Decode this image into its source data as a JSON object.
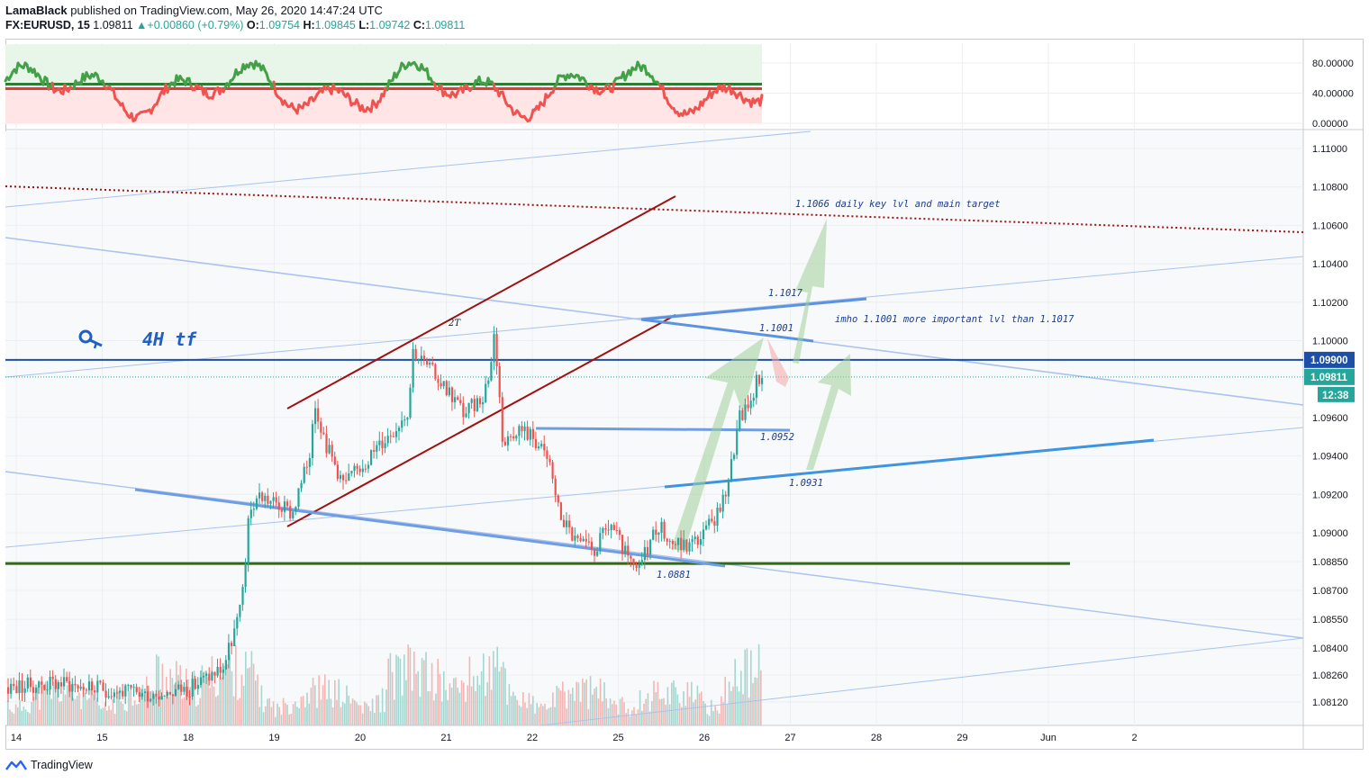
{
  "header": {
    "author": "LamaBlack",
    "published": "published on TradingView.com, May 26, 2020 14:47:24 UTC",
    "symbol": "FX:EURUSD, 15",
    "last": "1.09811",
    "change": "+0.00860 (+0.79%)",
    "o_label": "O:",
    "o": "1.09754",
    "h_label": "H:",
    "h": "1.09845",
    "l_label": "L:",
    "l": "1.09742",
    "c_label": "C:",
    "c": "1.09811"
  },
  "footer": {
    "brand": "TradingView"
  },
  "chart_data": [
    {
      "type": "line",
      "panel": "oscillator",
      "yticks": [
        "80.00000",
        "40.00000",
        "0.00000"
      ],
      "ylim": [
        0,
        100
      ],
      "upper_level": 52,
      "lower_level": 46,
      "colors": {
        "bull": "#43a047",
        "bear": "#ef5350",
        "bull_zone": "#e8f5e9",
        "bear_zone": "#ffe5e5"
      }
    },
    {
      "type": "candlestick",
      "panel": "price",
      "yticks": [
        "1.11000",
        "1.10800",
        "1.10600",
        "1.10400",
        "1.10200",
        "1.10000",
        "1.09600",
        "1.09400",
        "1.09200",
        "1.09000",
        "1.08850",
        "1.08700",
        "1.08550",
        "1.08400",
        "1.08260",
        "1.08120"
      ],
      "ylim": [
        1.0805,
        1.1115
      ],
      "xticks": [
        "14",
        "15",
        "18",
        "19",
        "20",
        "21",
        "22",
        "25",
        "26",
        "27",
        "28",
        "29",
        "Jun",
        "2"
      ],
      "price_labels": {
        "level": "1.09900",
        "last": "1.09811",
        "countdown": "12:38"
      },
      "colors": {
        "up": "#26a69a",
        "down": "#ef5350",
        "level": "#1e4fa8",
        "channel": "#a01010",
        "trend": "#6f9de3",
        "support": "#2e6b12"
      },
      "annotations": {
        "key_label": "4H tf",
        "top_pattern": "2T",
        "target": "1.1066  daily key lvl and main target",
        "l1017": "1.1017",
        "imho": "imho 1.1001 more important lvl than 1.1017",
        "l1001": "1.1001",
        "l0952": "1.0952",
        "l0931": "1.0931",
        "l0881": "1.0881"
      },
      "key_levels": [
        1.0881,
        1.0931,
        1.0952,
        1.099,
        1.1001,
        1.1017,
        1.1066
      ],
      "series_note_points": [
        [
          0,
          1.082
        ],
        [
          0.5,
          1.0822
        ],
        [
          1,
          1.0818
        ],
        [
          1.5,
          1.0816
        ],
        [
          2,
          1.0819
        ],
        [
          2.4,
          1.083
        ],
        [
          2.6,
          1.086
        ],
        [
          2.7,
          1.091
        ],
        [
          2.8,
          1.092
        ],
        [
          3,
          1.0915
        ],
        [
          3.2,
          1.091
        ],
        [
          3.4,
          1.094
        ],
        [
          3.45,
          1.097
        ],
        [
          3.6,
          1.0945
        ],
        [
          3.8,
          1.0925
        ],
        [
          4,
          1.0935
        ],
        [
          4.2,
          1.0945
        ],
        [
          4.4,
          1.0955
        ],
        [
          4.55,
          1.0965
        ],
        [
          4.6,
          1.0995
        ],
        [
          4.8,
          1.0985
        ],
        [
          5,
          1.0975
        ],
        [
          5.2,
          1.0962
        ],
        [
          5.4,
          1.097
        ],
        [
          5.5,
          1.0985
        ],
        [
          5.55,
          1.1005
        ],
        [
          5.6,
          1.0975
        ],
        [
          5.65,
          1.0945
        ],
        [
          5.8,
          1.0955
        ],
        [
          6,
          1.095
        ],
        [
          6.2,
          1.0935
        ],
        [
          6.3,
          1.091
        ],
        [
          6.5,
          1.0895
        ],
        [
          6.7,
          1.089
        ],
        [
          6.9,
          1.0905
        ],
        [
          7,
          1.0895
        ],
        [
          7.2,
          1.0878
        ],
        [
          7.3,
          1.089
        ],
        [
          7.45,
          1.0905
        ],
        [
          7.6,
          1.0895
        ],
        [
          7.8,
          1.0893
        ],
        [
          8,
          1.09
        ],
        [
          8.2,
          1.0915
        ],
        [
          8.3,
          1.0935
        ],
        [
          8.4,
          1.096
        ],
        [
          8.5,
          1.0965
        ],
        [
          8.6,
          1.098
        ],
        [
          8.65,
          1.0981
        ]
      ]
    }
  ]
}
